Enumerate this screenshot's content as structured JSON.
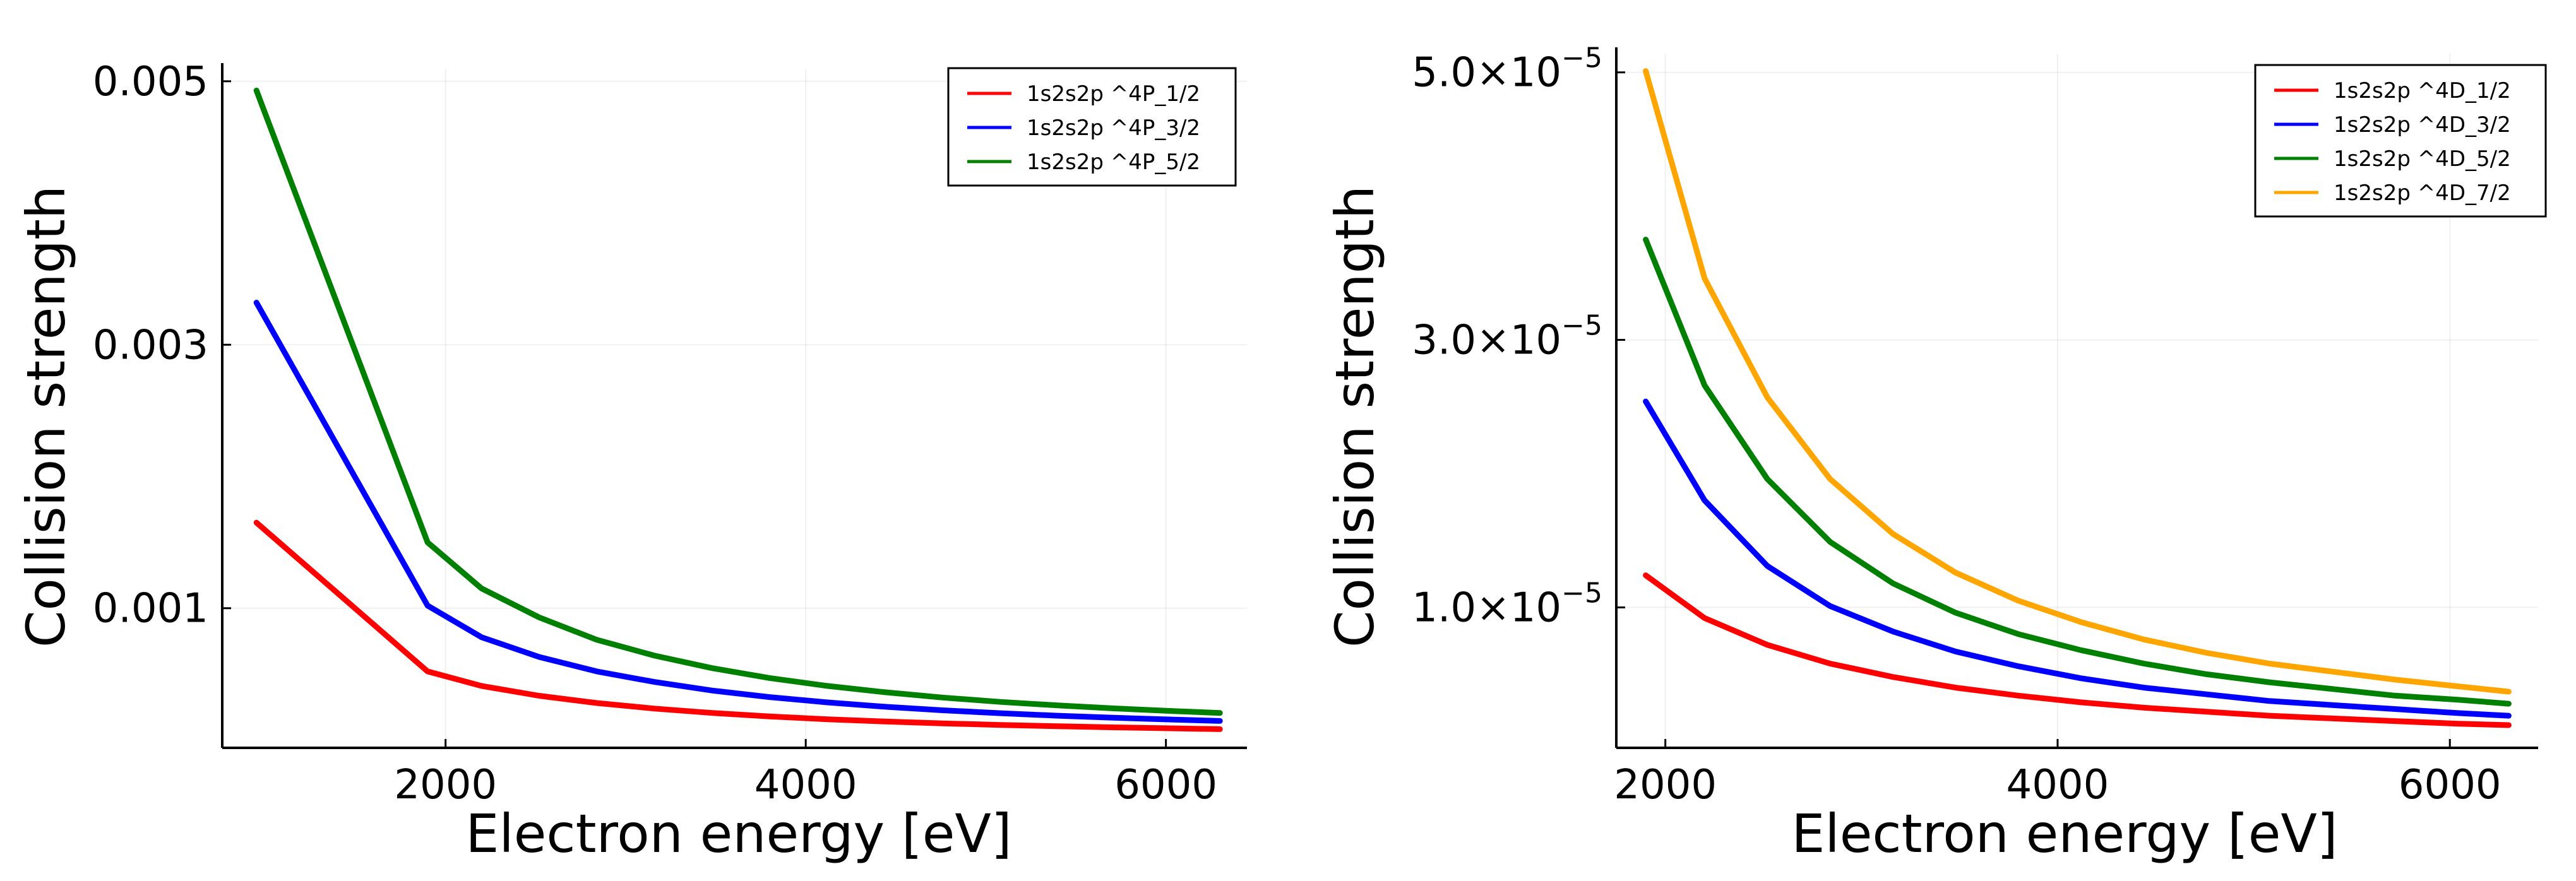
{
  "chart_data": [
    {
      "type": "line",
      "title": "",
      "xlabel": "Electron energy [eV]",
      "ylabel": "Collision strength",
      "xlim": [
        760,
        6450
      ],
      "ylim": [
        -6e-05,
        0.00509
      ],
      "xticks": [
        2000,
        4000,
        6000
      ],
      "xtick_labels": [
        "2000",
        "4000",
        "6000"
      ],
      "yticks": [
        0.001,
        0.003,
        0.005
      ],
      "ytick_labels": [
        "0.001",
        "0.003",
        "0.005"
      ],
      "grid": true,
      "legend_position": "top-right",
      "x": [
        950,
        1900,
        2200,
        2520,
        2840,
        3160,
        3480,
        3800,
        4120,
        4440,
        4760,
        5080,
        5400,
        5720,
        6040,
        6300
      ],
      "series": [
        {
          "name": "1s2s2p ^4P_1/2",
          "color": "#ff0000",
          "values": [
            0.00165,
            0.00052,
            0.00041,
            0.000335,
            0.00028,
            0.000238,
            0.000205,
            0.000178,
            0.000157,
            0.00014,
            0.000126,
            0.000114,
            0.000104,
            9.5e-05,
            8.8e-05,
            8.2e-05
          ]
        },
        {
          "name": "1s2s2p ^4P_3/2",
          "color": "#0000ff",
          "values": [
            0.00332,
            0.00102,
            0.00078,
            0.00063,
            0.00052,
            0.00044,
            0.000375,
            0.000325,
            0.000285,
            0.000252,
            0.000225,
            0.000203,
            0.000184,
            0.000168,
            0.000154,
            0.000144
          ]
        },
        {
          "name": "1s2s2p ^4P_5/2",
          "color": "#008000",
          "values": [
            0.00493,
            0.0015,
            0.00115,
            0.00093,
            0.00076,
            0.00064,
            0.000545,
            0.00047,
            0.00041,
            0.000362,
            0.000322,
            0.000289,
            0.000262,
            0.000239,
            0.000219,
            0.000205
          ]
        }
      ]
    },
    {
      "type": "line",
      "title": "",
      "xlabel": "Electron energy [eV]",
      "ylabel": "Collision strength",
      "xlim": [
        1750,
        6450
      ],
      "ylim": [
        -5e-07,
        5.14e-05
      ],
      "xticks": [
        2000,
        4000,
        6000
      ],
      "xtick_labels": [
        "2000",
        "4000",
        "6000"
      ],
      "yticks": [
        1e-05,
        3e-05,
        5e-05
      ],
      "ytick_labels": [
        "1.0×10",
        "3.0×10",
        "5.0×10"
      ],
      "ytick_exponent": "−5",
      "grid": true,
      "legend_position": "top-right",
      "x": [
        1900,
        2200,
        2520,
        2840,
        3160,
        3480,
        3800,
        4120,
        4440,
        4760,
        5080,
        5400,
        5720,
        6040,
        6300
      ],
      "series": [
        {
          "name": "1s2s2p ^4D_1/2",
          "color": "#ff0000",
          "values": [
            1.24e-05,
            9.2e-06,
            7.2e-06,
            5.8e-06,
            4.8e-06,
            4e-06,
            3.4e-06,
            2.9e-06,
            2.5e-06,
            2.2e-06,
            1.9e-06,
            1.7e-06,
            1.5e-06,
            1.3e-06,
            1.2e-06
          ]
        },
        {
          "name": "1s2s2p ^4D_3/2",
          "color": "#0000ff",
          "values": [
            2.54e-05,
            1.8e-05,
            1.31e-05,
            1.01e-05,
            8.2e-06,
            6.7e-06,
            5.6e-06,
            4.7e-06,
            4e-06,
            3.5e-06,
            3e-06,
            2.7e-06,
            2.4e-06,
            2.1e-06,
            1.9e-06
          ]
        },
        {
          "name": "1s2s2p ^4D_5/2",
          "color": "#008000",
          "values": [
            3.75e-05,
            2.66e-05,
            1.96e-05,
            1.49e-05,
            1.18e-05,
            9.6e-06,
            8e-06,
            6.8e-06,
            5.8e-06,
            5e-06,
            4.4e-06,
            3.9e-06,
            3.4e-06,
            3.1e-06,
            2.8e-06
          ]
        },
        {
          "name": "1s2s2p ^4D_7/2",
          "color": "#ffa500",
          "values": [
            5.01e-05,
            3.46e-05,
            2.57e-05,
            1.96e-05,
            1.55e-05,
            1.26e-05,
            1.05e-05,
            8.9e-06,
            7.6e-06,
            6.6e-06,
            5.8e-06,
            5.2e-06,
            4.6e-06,
            4.1e-06,
            3.7e-06
          ]
        }
      ]
    }
  ]
}
